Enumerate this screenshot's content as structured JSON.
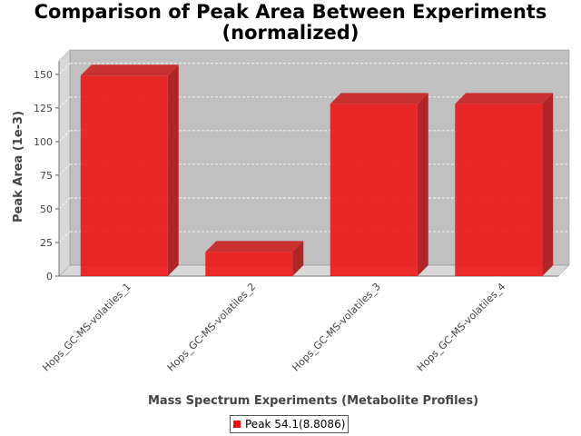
{
  "chart_data": {
    "type": "bar",
    "title": "Comparison of Peak Area Between Experiments",
    "subtitle": "(normalized)",
    "xlabel": "Mass Spectrum Experiments (Metabolite Profiles)",
    "ylabel": "Peak Area (1e-3)",
    "categories": [
      "Hops_GC-MS-volatiles_1",
      "Hops_GC-MS-volatiles_2",
      "Hops_GC-MS-volatiles_3",
      "Hops_GC-MS-volatiles_4"
    ],
    "series": [
      {
        "name": "Peak 54.1(8.8086)",
        "values": [
          149,
          18,
          128,
          128
        ],
        "color": "#ee1111"
      }
    ],
    "ylim": [
      0,
      160
    ],
    "yticks": [
      0,
      25,
      50,
      75,
      100,
      125,
      150
    ],
    "grid": true,
    "legend_position": "bottom",
    "colors": {
      "plot_background": "#c0c0c0",
      "bar": "#ee1111"
    }
  }
}
